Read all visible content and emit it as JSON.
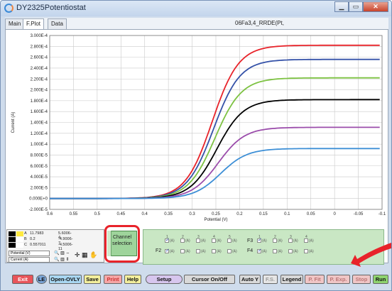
{
  "window": {
    "title": "DY2325Potentiostat",
    "file_title": "06Fa3,4_RRDE(Pt,"
  },
  "tabs": [
    {
      "label": "Main"
    },
    {
      "label": "F.Plot"
    },
    {
      "label": "Data"
    }
  ],
  "chart_data": {
    "type": "line",
    "xlabel": "Potential (V)",
    "ylabel": "Current (A)",
    "xlim": [
      0.6,
      -0.1
    ],
    "ylim": [
      -2e-05,
      0.0003
    ],
    "x_ticks": [
      "0.6",
      "0.55",
      "0.5",
      "0.45",
      "0.4",
      "0.35",
      "0.3",
      "0.25",
      "0.2",
      "0.15",
      "0.1",
      "0.05",
      "0",
      "-0.05",
      "-0.1"
    ],
    "y_ticks": [
      "-2.000E-5",
      "0.000E+0",
      "2.000E-5",
      "4.000E-5",
      "6.000E-5",
      "8.000E-5",
      "1.000E-4",
      "1.200E-4",
      "1.400E-4",
      "1.600E-4",
      "1.800E-4",
      "2.000E-4",
      "2.200E-4",
      "2.400E-4",
      "2.600E-4",
      "2.800E-4",
      "3.000E-4"
    ],
    "series": [
      {
        "color": "#e8232a",
        "limit": 0.000282,
        "half_wave": 0.258
      },
      {
        "color": "#3552a8",
        "limit": 0.000256,
        "half_wave": 0.255
      },
      {
        "color": "#7dc242",
        "limit": 0.000222,
        "half_wave": 0.252
      },
      {
        "color": "#000000",
        "limit": 0.000182,
        "half_wave": 0.248
      },
      {
        "color": "#9b4dab",
        "limit": 0.000131,
        "half_wave": 0.245
      },
      {
        "color": "#3d8fd6",
        "limit": 9.2e-05,
        "half_wave": 0.24
      }
    ],
    "x_points": [
      0.6,
      0.55,
      0.5,
      0.45,
      0.4,
      0.38,
      0.36,
      0.34,
      0.32,
      0.3,
      0.29,
      0.28,
      0.27,
      0.26,
      0.25,
      0.24,
      0.23,
      0.22,
      0.21,
      0.2,
      0.18,
      0.16,
      0.14,
      0.12,
      0.1,
      0.05,
      0,
      -0.05,
      -0.1
    ]
  },
  "cursor": {
    "rows": [
      {
        "name": "A",
        "col1": "11.7983",
        "col2": "5.6006-4"
      },
      {
        "name": "B",
        "col1": "0.2",
        "col2": "-4.9006-7"
      },
      {
        "name": "C",
        "col1": "0.557011",
        "col2": "-4.5006-11"
      }
    ],
    "x_select": "Potential (V)",
    "y_select": "Current (A)"
  },
  "channel": {
    "button_label": "Channel selection"
  },
  "channel_groups": {
    "f1": {
      "label": "",
      "checks": [
        "(A)",
        "(A)",
        "(A)",
        "(A)",
        "(A)"
      ]
    },
    "f2": {
      "label": "F2",
      "checks": [
        "(A)",
        "(A)",
        "(A)",
        "(A)",
        "(A)"
      ]
    },
    "f3": {
      "label": "F3",
      "checks": [
        "(A)",
        "(A)",
        "(A)",
        "(A)"
      ]
    },
    "f4": {
      "label": "F4",
      "checks": [
        "(A)",
        "(A)",
        "(A)",
        "(A)"
      ]
    }
  },
  "toolbar": {
    "exit": "Exit",
    "le": "LE",
    "open_ovly": "Open-OVLY",
    "save": "Save",
    "print": "Print",
    "help": "Help",
    "setup": "Setup",
    "cursor": "Cursor On/Off",
    "auto_y": "Auto Y",
    "fs": "F.S.",
    "legend": "Legend",
    "p_fit": "P. Fit",
    "p_exp": "P. Exp.",
    "stop": "Stop",
    "run": "Run"
  }
}
